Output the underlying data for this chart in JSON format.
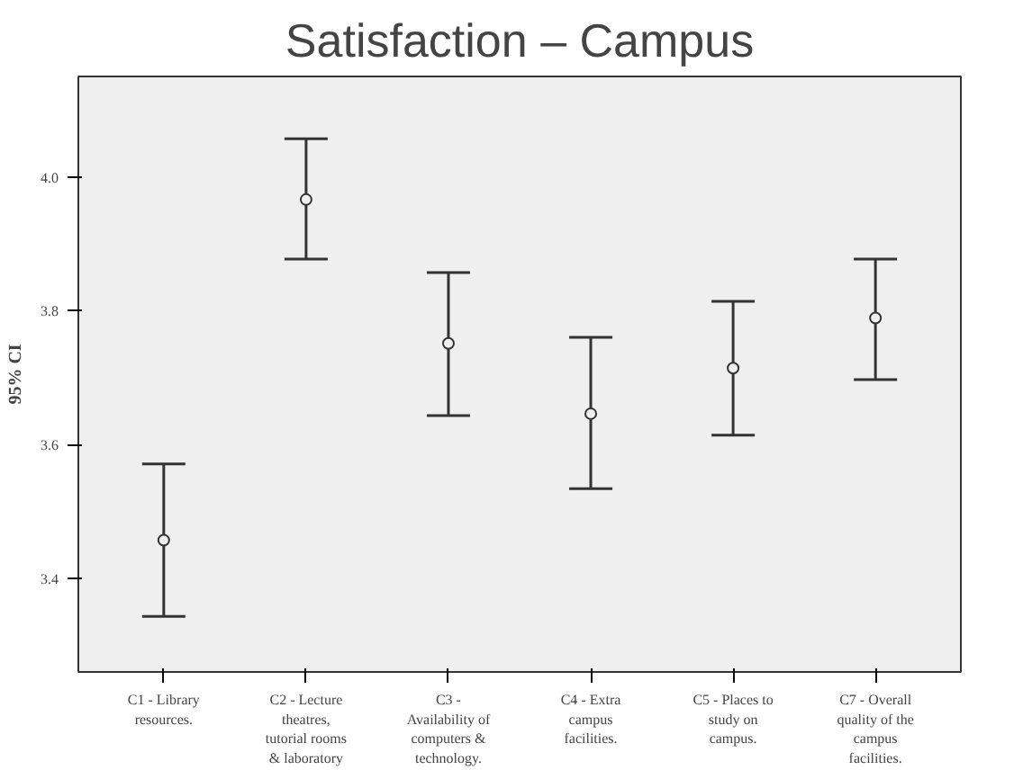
{
  "chart_data": {
    "type": "scatter",
    "title": "Satisfaction – Campus",
    "ylabel": "95% CI",
    "categories": [
      "C1 - Library resources.",
      "C2 - Lecture theatres, tutorial rooms & laboratory",
      "C3 - Availability of computers & technology.",
      "C4 - Extra campus facilities.",
      "C5 - Places to study on campus.",
      "C7 - Overall quality of the campus facilities."
    ],
    "values": [
      3.457,
      3.966,
      3.751,
      3.646,
      3.714,
      3.789
    ],
    "errors": [
      [
        3.343,
        3.571
      ],
      [
        3.877,
        4.057
      ],
      [
        3.643,
        3.857
      ],
      [
        3.534,
        3.76
      ],
      [
        3.614,
        3.814
      ],
      [
        3.697,
        3.877
      ]
    ],
    "color": "#333333",
    "marker": "circle",
    "grid": false,
    "ylim": [
      3.26,
      4.15
    ],
    "yticks": [
      {
        "value": 3.4,
        "label": "3.4"
      },
      {
        "value": 3.6,
        "label": "3.6"
      },
      {
        "value": 3.8,
        "label": "3.8"
      },
      {
        "value": 4.0,
        "label": "4.0"
      }
    ]
  }
}
